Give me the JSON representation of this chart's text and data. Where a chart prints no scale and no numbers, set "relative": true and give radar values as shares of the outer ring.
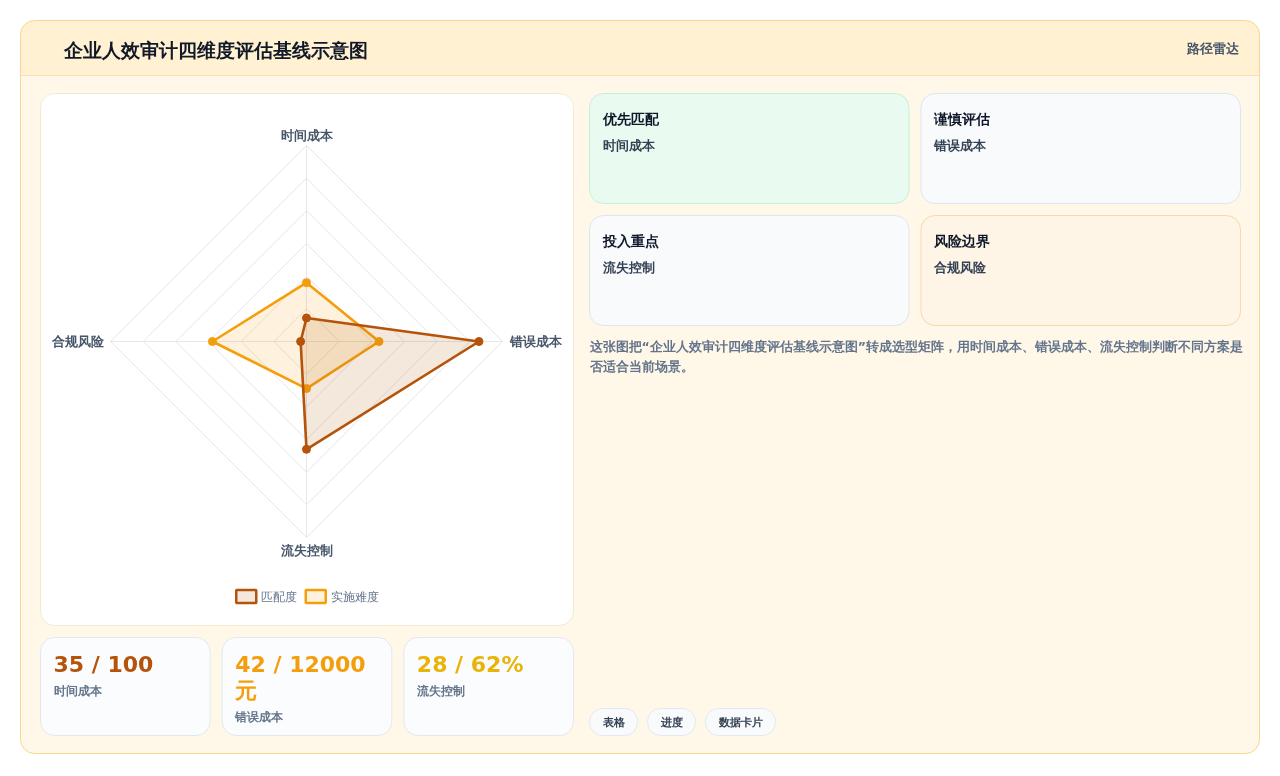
{
  "chart_data": [
    {
      "type": "other",
      "annotations": [
        "路径雷达"
      ]
    },
    {
      "type": "radar",
      "title": "企业人效审计四维度评估基线示意图",
      "categories": [
        "时间成本",
        "错误成本",
        "流失控制",
        "合规风险"
      ],
      "relative": true,
      "grid": true,
      "legend": "bottom",
      "marker": "circle",
      "series": [
        {
          "name": "匹配度",
          "color": "#b45309",
          "values": [
            0.12,
            0.88,
            0.55,
            0.03
          ]
        },
        {
          "name": "实施难度",
          "color": "#f59e0b",
          "values": [
            0.3,
            0.37,
            0.24,
            0.48
          ]
        }
      ]
    },
    {
      "type": "other",
      "annotations": [
        "优先匹配",
        "时间成本",
        "谨慎评估",
        "错误成本",
        "投入重点",
        "流失控制",
        "风险边界",
        "合规风险"
      ]
    },
    {
      "type": "other",
      "annotations": [
        "这张图把“企业人效审计四维度评估基线示意图”转成选型矩阵，用时间成本、错误成本、流失控制判断不同方案是否适合当前场景。",
        "表格",
        "进度",
        "数据卡片"
      ]
    },
    {
      "type": "other",
      "annotations": [
        "35 / 100",
        "时间成本",
        "42 / 12000 元",
        "错误成本",
        "28 / 62%",
        "流失控制"
      ],
      "colors": [
        "#b45309",
        "#f59e0b",
        "#eab308"
      ]
    }
  ]
}
